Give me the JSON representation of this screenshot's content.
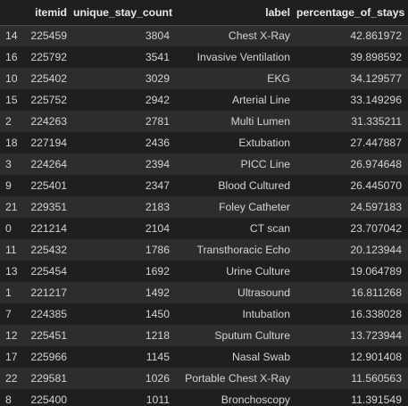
{
  "table": {
    "columns": [
      "",
      "itemid",
      "unique_stay_count",
      "label",
      "percentage_of_stays"
    ],
    "rows": [
      {
        "index": "14",
        "itemid": "225459",
        "unique_stay_count": "3804",
        "label": "Chest X-Ray",
        "percentage_of_stays": "42.861972"
      },
      {
        "index": "16",
        "itemid": "225792",
        "unique_stay_count": "3541",
        "label": "Invasive Ventilation",
        "percentage_of_stays": "39.898592"
      },
      {
        "index": "10",
        "itemid": "225402",
        "unique_stay_count": "3029",
        "label": "EKG",
        "percentage_of_stays": "34.129577"
      },
      {
        "index": "15",
        "itemid": "225752",
        "unique_stay_count": "2942",
        "label": "Arterial Line",
        "percentage_of_stays": "33.149296"
      },
      {
        "index": "2",
        "itemid": "224263",
        "unique_stay_count": "2781",
        "label": "Multi Lumen",
        "percentage_of_stays": "31.335211"
      },
      {
        "index": "18",
        "itemid": "227194",
        "unique_stay_count": "2436",
        "label": "Extubation",
        "percentage_of_stays": "27.447887"
      },
      {
        "index": "3",
        "itemid": "224264",
        "unique_stay_count": "2394",
        "label": "PICC Line",
        "percentage_of_stays": "26.974648"
      },
      {
        "index": "9",
        "itemid": "225401",
        "unique_stay_count": "2347",
        "label": "Blood Cultured",
        "percentage_of_stays": "26.445070"
      },
      {
        "index": "21",
        "itemid": "229351",
        "unique_stay_count": "2183",
        "label": "Foley Catheter",
        "percentage_of_stays": "24.597183"
      },
      {
        "index": "0",
        "itemid": "221214",
        "unique_stay_count": "2104",
        "label": "CT scan",
        "percentage_of_stays": "23.707042"
      },
      {
        "index": "11",
        "itemid": "225432",
        "unique_stay_count": "1786",
        "label": "Transthoracic Echo",
        "percentage_of_stays": "20.123944"
      },
      {
        "index": "13",
        "itemid": "225454",
        "unique_stay_count": "1692",
        "label": "Urine Culture",
        "percentage_of_stays": "19.064789"
      },
      {
        "index": "1",
        "itemid": "221217",
        "unique_stay_count": "1492",
        "label": "Ultrasound",
        "percentage_of_stays": "16.811268"
      },
      {
        "index": "7",
        "itemid": "224385",
        "unique_stay_count": "1450",
        "label": "Intubation",
        "percentage_of_stays": "16.338028"
      },
      {
        "index": "12",
        "itemid": "225451",
        "unique_stay_count": "1218",
        "label": "Sputum Culture",
        "percentage_of_stays": "13.723944"
      },
      {
        "index": "17",
        "itemid": "225966",
        "unique_stay_count": "1145",
        "label": "Nasal Swab",
        "percentage_of_stays": "12.901408"
      },
      {
        "index": "22",
        "itemid": "229581",
        "unique_stay_count": "1026",
        "label": "Portable Chest X-Ray",
        "percentage_of_stays": "11.560563"
      },
      {
        "index": "8",
        "itemid": "225400",
        "unique_stay_count": "1011",
        "label": "Bronchoscopy",
        "percentage_of_stays": "11.391549"
      }
    ]
  },
  "colors": {
    "background": "#1f1f1f",
    "row_stripe": "#2d2d2d",
    "text": "#d4d4d4",
    "header_text": "#e8e8e8",
    "border": "#4a4a4a"
  }
}
